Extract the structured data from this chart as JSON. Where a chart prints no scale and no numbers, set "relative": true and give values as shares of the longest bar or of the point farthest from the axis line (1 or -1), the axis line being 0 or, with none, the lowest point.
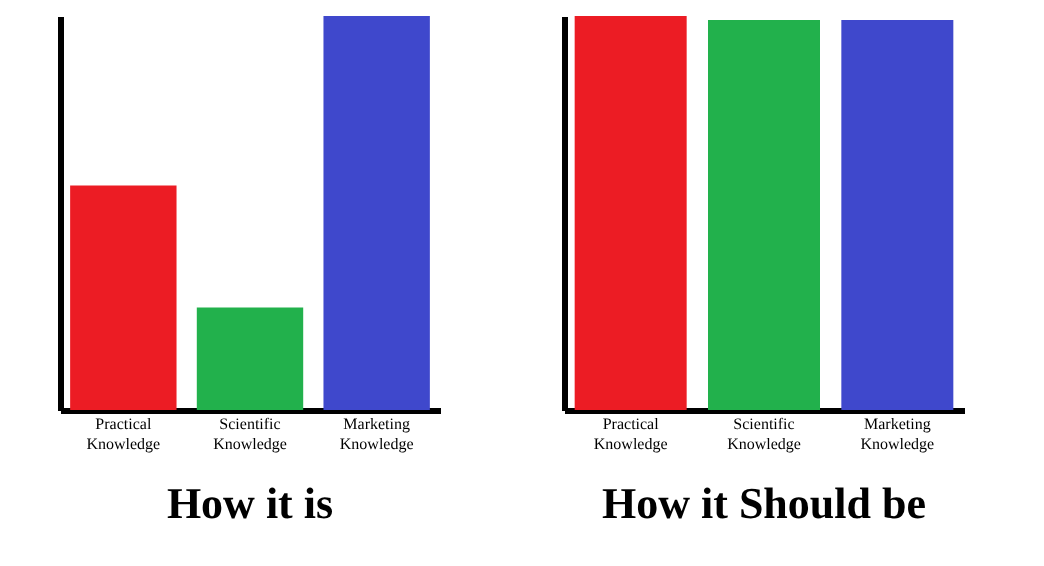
{
  "chart_data": [
    {
      "type": "bar",
      "title": "How it is",
      "relative": true,
      "categories": [
        "Practical Knowledge",
        "Scientific Knowledge",
        "Marketing Knowledge"
      ],
      "values": [
        0.57,
        0.26,
        1
      ],
      "colors": [
        "#ec1c24",
        "#22b14c",
        "#3f48cc"
      ]
    },
    {
      "type": "bar",
      "title": "How it Should be",
      "relative": true,
      "categories": [
        "Practical Knowledge",
        "Scientific Knowledge",
        "Marketing Knowledge"
      ],
      "values": [
        1,
        0.99,
        0.99
      ],
      "colors": [
        "#ec1c24",
        "#22b14c",
        "#3f48cc"
      ]
    }
  ]
}
